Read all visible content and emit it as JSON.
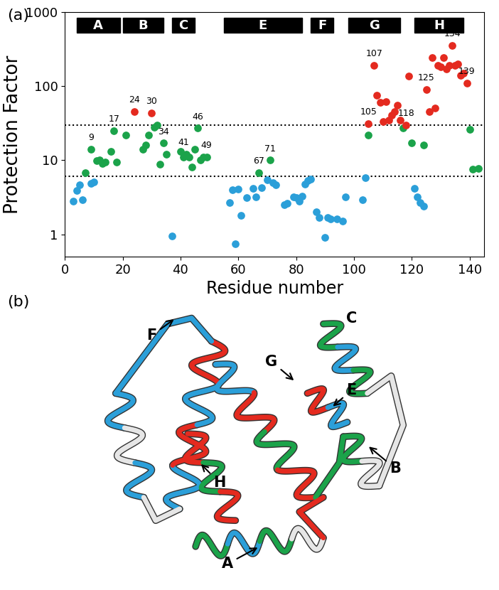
{
  "chart_data": {
    "type": "scatter",
    "panel_label": "(a)",
    "x_label": "Residue number",
    "y_label": "Protection Factor",
    "log": "y",
    "xlim": [
      0,
      145
    ],
    "ylim": [
      0.5,
      1000
    ],
    "xticks": [
      0,
      20,
      40,
      60,
      80,
      100,
      120,
      140
    ],
    "yticks": [
      1,
      10,
      100,
      1000
    ],
    "hlines": [
      30,
      6
    ],
    "helices": [
      {
        "label": "A",
        "start": 4,
        "end": 19
      },
      {
        "label": "B",
        "start": 20,
        "end": 34
      },
      {
        "label": "C",
        "start": 37,
        "end": 45
      },
      {
        "label": "E",
        "start": 55,
        "end": 82
      },
      {
        "label": "F",
        "start": 85,
        "end": 93
      },
      {
        "label": "G",
        "start": 98,
        "end": 116
      },
      {
        "label": "H",
        "start": 121,
        "end": 138
      }
    ],
    "series": [
      {
        "color": "#2b9fd9",
        "marker": "circle",
        "x": [
          3,
          4,
          5,
          6,
          9,
          10,
          37,
          57,
          58,
          59,
          60,
          61,
          63,
          65,
          66,
          68,
          70,
          72,
          73,
          76,
          77,
          79,
          80,
          81,
          82,
          83,
          84,
          85,
          87,
          88,
          90,
          91,
          92,
          94,
          96,
          97,
          103,
          104,
          121,
          122,
          123,
          124
        ],
        "values": [
          2.8,
          3.9,
          4.7,
          2.9,
          4.9,
          5.1,
          0.95,
          2.7,
          4.0,
          0.75,
          4.1,
          1.8,
          3.1,
          4.2,
          3.2,
          4.3,
          5.4,
          5.0,
          4.6,
          2.5,
          2.6,
          3.2,
          3.1,
          2.8,
          3.3,
          4.8,
          5.3,
          5.5,
          2.0,
          1.7,
          0.9,
          1.7,
          1.6,
          1.6,
          1.5,
          3.2,
          2.9,
          5.8,
          4.2,
          3.2,
          2.7,
          2.4
        ]
      },
      {
        "color": "#1ba34a",
        "marker": "circle",
        "x": [
          7,
          9,
          11,
          12,
          13,
          14,
          16,
          17,
          18,
          21,
          27,
          28,
          29,
          31,
          32,
          33,
          34,
          35,
          40,
          41,
          42,
          43,
          44,
          45,
          46,
          47,
          48,
          49,
          67,
          71,
          105,
          117,
          120,
          124,
          140,
          141,
          143
        ],
        "values": [
          6.8,
          14,
          9.8,
          10,
          9,
          9.5,
          13,
          25,
          9.5,
          22,
          14,
          16,
          22,
          28,
          30,
          8.8,
          17,
          12,
          13,
          11,
          12,
          11,
          8,
          14,
          27,
          10,
          11,
          11,
          6.8,
          10,
          22,
          27,
          17,
          16,
          26,
          7.5,
          7.8
        ]
      },
      {
        "color": "#e42a1f",
        "marker": "circle",
        "x": [
          24,
          30,
          105,
          107,
          108,
          109,
          110,
          111,
          112,
          113,
          114,
          115,
          116,
          118,
          119,
          125,
          126,
          127,
          128,
          129,
          130,
          131,
          132,
          133,
          134,
          135,
          136,
          137,
          138,
          139
        ],
        "values": [
          45,
          43,
          31,
          190,
          75,
          60,
          33,
          62,
          35,
          40,
          45,
          55,
          35,
          30,
          135,
          90,
          45,
          240,
          50,
          190,
          180,
          240,
          170,
          190,
          350,
          190,
          200,
          140,
          150,
          110
        ]
      }
    ],
    "annotations": [
      {
        "x": 9,
        "y": 14,
        "text": "9"
      },
      {
        "x": 17,
        "y": 25,
        "text": "17"
      },
      {
        "x": 24,
        "y": 45,
        "text": "24"
      },
      {
        "x": 30,
        "y": 43,
        "text": "30"
      },
      {
        "x": 34,
        "y": 17,
        "text": "34"
      },
      {
        "x": 41,
        "y": 12,
        "text": "41"
      },
      {
        "x": 46,
        "y": 27,
        "text": "46"
      },
      {
        "x": 49,
        "y": 11,
        "text": "49"
      },
      {
        "x": 67,
        "y": 6.8,
        "text": "67"
      },
      {
        "x": 71,
        "y": 10,
        "text": "71"
      },
      {
        "x": 105,
        "y": 31,
        "text": "105"
      },
      {
        "x": 107,
        "y": 190,
        "text": "107"
      },
      {
        "x": 118,
        "y": 30,
        "text": "118"
      },
      {
        "x": 125,
        "y": 90,
        "text": "125"
      },
      {
        "x": 134,
        "y": 350,
        "text": "134"
      },
      {
        "x": 139,
        "y": 110,
        "text": "139"
      }
    ]
  },
  "diagram": {
    "panel_label": "(b)",
    "labels": [
      "F",
      "G",
      "C",
      "E",
      "B",
      "H",
      "A"
    ]
  }
}
